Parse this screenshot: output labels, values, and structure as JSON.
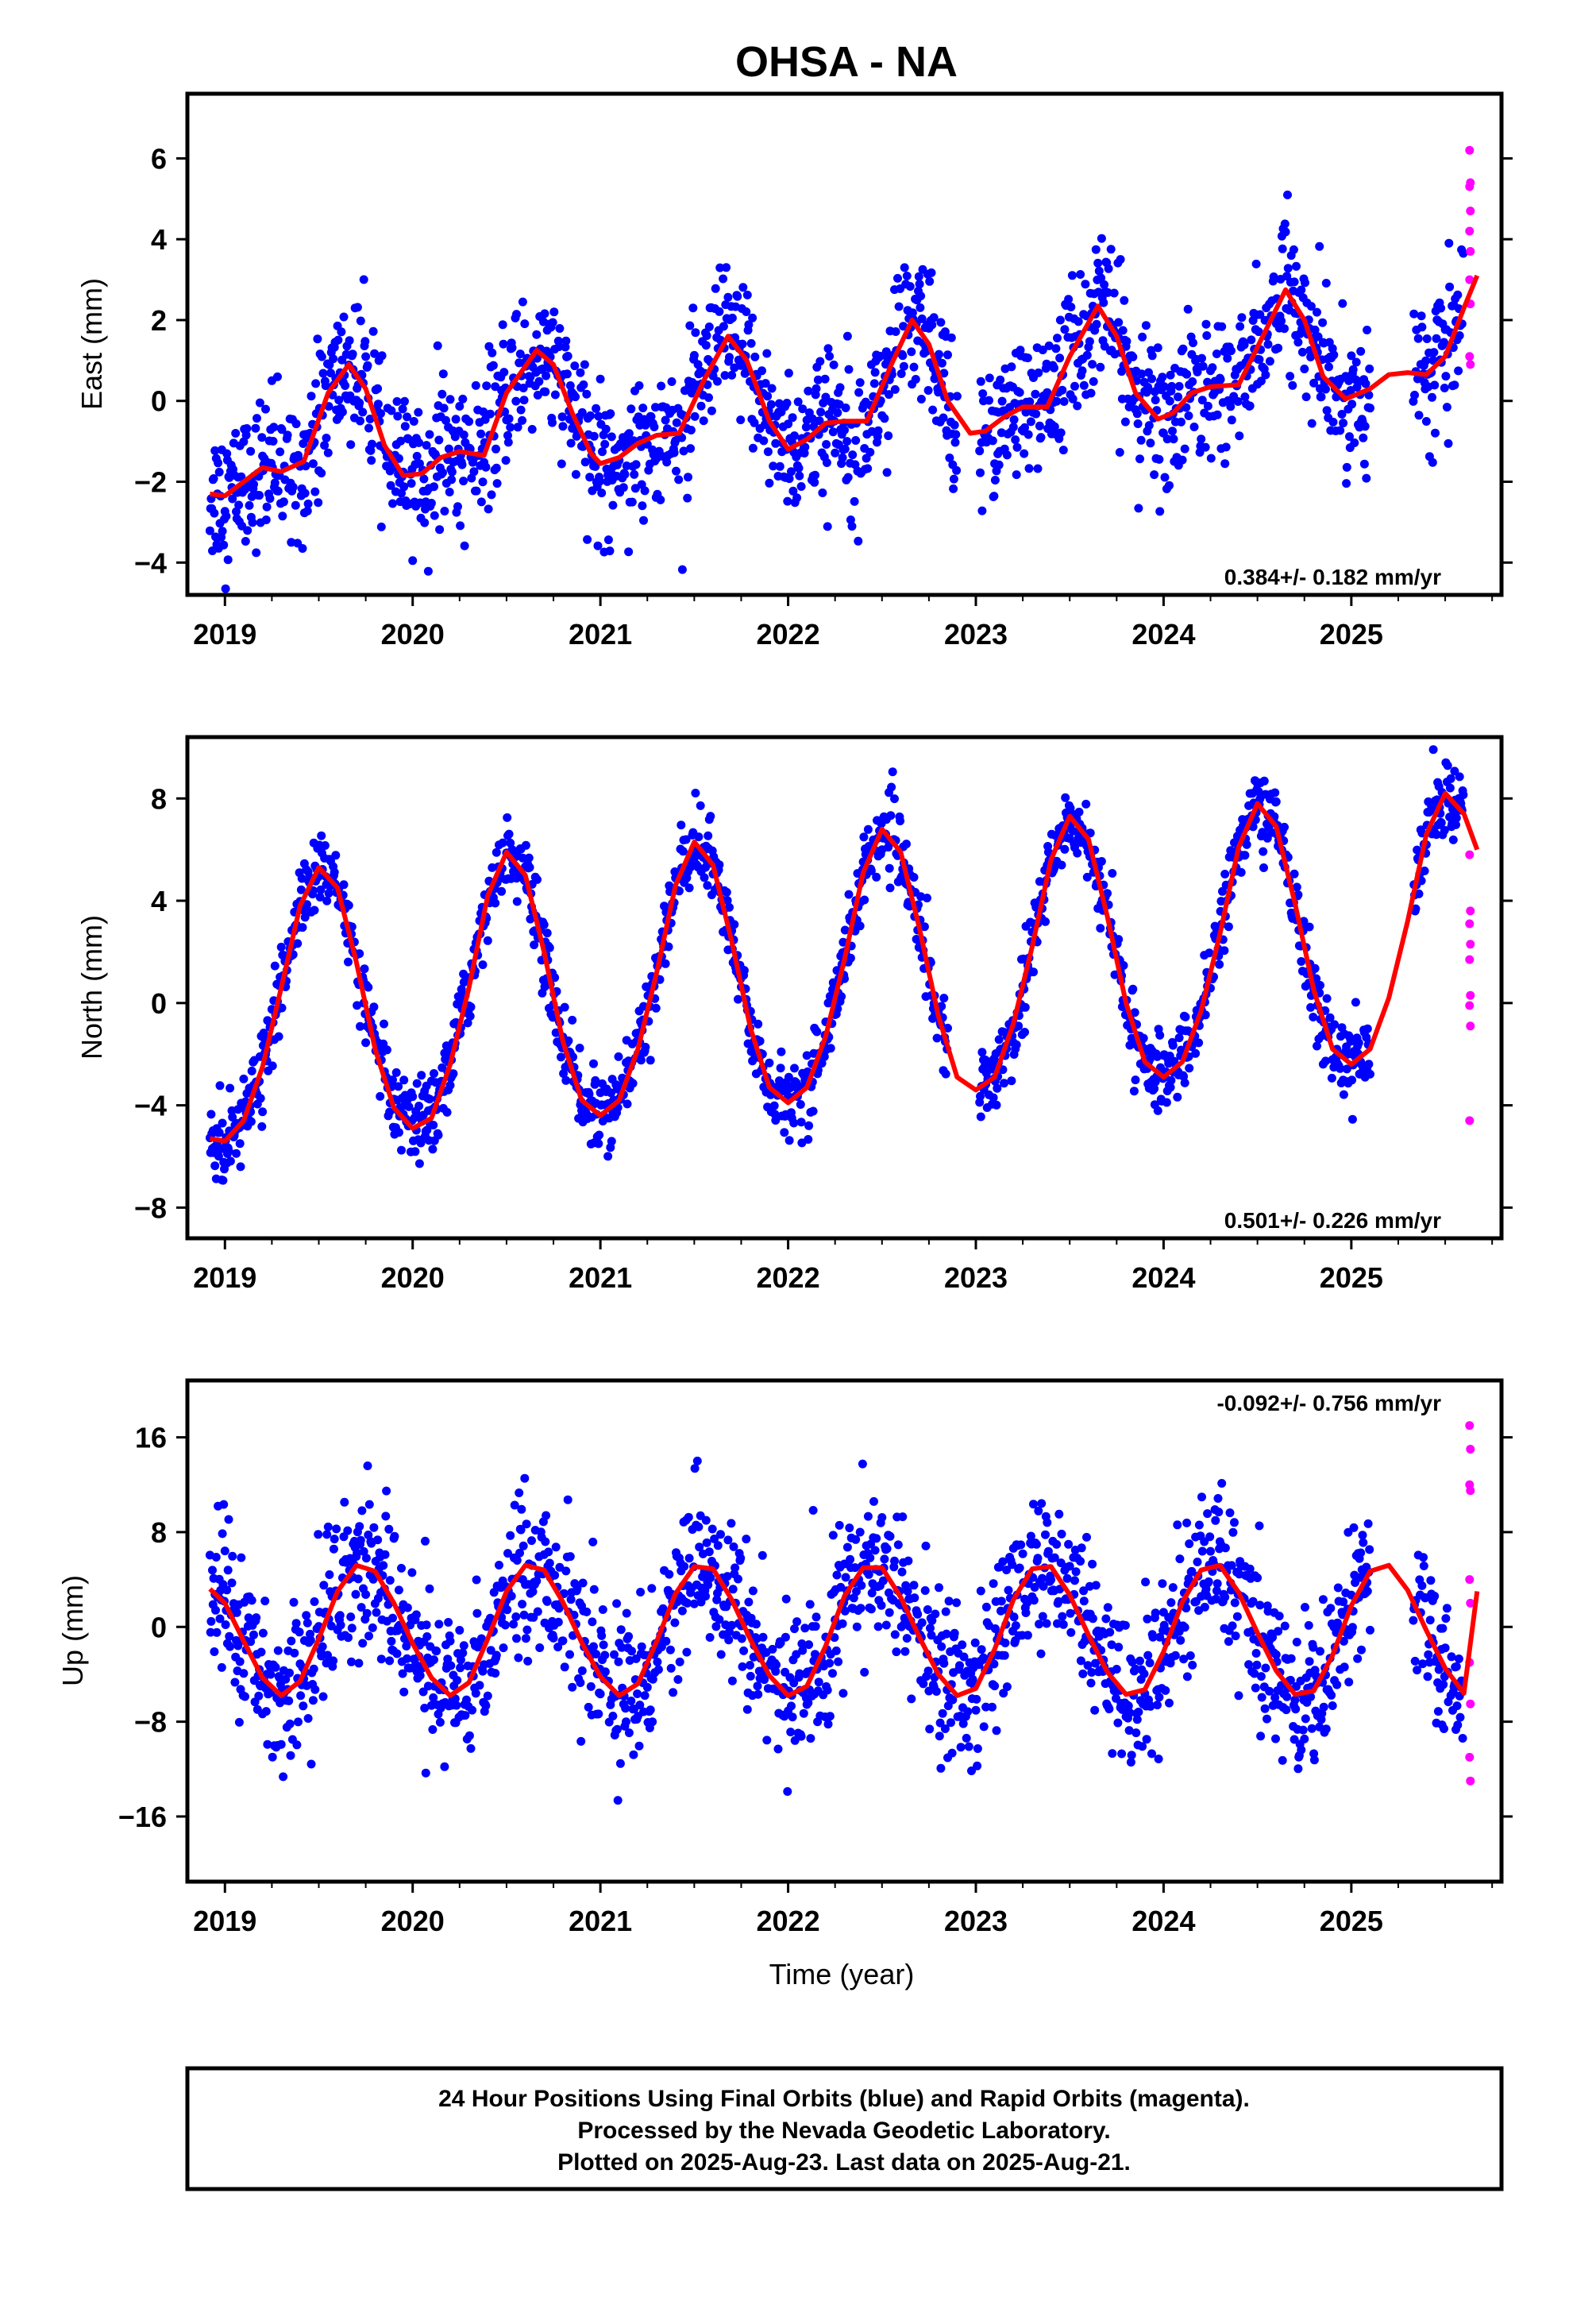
{
  "title": "OHSA - NA",
  "xlabel": "Time (year)",
  "colors": {
    "final": "#0000ff",
    "rapid": "#ff00ff",
    "model": "#ff0000",
    "frame": "#000000"
  },
  "footer": [
    "24 Hour Positions Using Final Orbits (blue) and Rapid Orbits (magenta).",
    "Processed by the Nevada Geodetic Laboratory.",
    "Plotted on 2025-Aug-23. Last data on 2025-Aug-21."
  ],
  "chart_data": [
    {
      "type": "scatter",
      "name": "east",
      "ylabel": "East (mm)",
      "xlim": [
        2018.8,
        2025.8
      ],
      "ylim": [
        -4.8,
        7.6
      ],
      "yticks": [
        -4,
        -2,
        0,
        2,
        4,
        6
      ],
      "xticks": [
        2019,
        2020,
        2021,
        2022,
        2023,
        2024,
        2025
      ],
      "rate_label": "0.384+/- 0.182 mm/yr",
      "rate_position": "bottom-right",
      "model": [
        [
          2018.92,
          -2.3
        ],
        [
          2019.0,
          -2.35
        ],
        [
          2019.1,
          -2.0
        ],
        [
          2019.2,
          -1.65
        ],
        [
          2019.3,
          -1.75
        ],
        [
          2019.42,
          -1.5
        ],
        [
          2019.55,
          0.2
        ],
        [
          2019.66,
          0.9
        ],
        [
          2019.75,
          0.3
        ],
        [
          2019.85,
          -1.1
        ],
        [
          2019.95,
          -1.85
        ],
        [
          2020.05,
          -1.8
        ],
        [
          2020.15,
          -1.4
        ],
        [
          2020.25,
          -1.25
        ],
        [
          2020.38,
          -1.35
        ],
        [
          2020.5,
          0.2
        ],
        [
          2020.66,
          1.25
        ],
        [
          2020.75,
          0.9
        ],
        [
          2020.85,
          -0.3
        ],
        [
          2020.95,
          -1.3
        ],
        [
          2021.0,
          -1.55
        ],
        [
          2021.1,
          -1.4
        ],
        [
          2021.2,
          -1.05
        ],
        [
          2021.3,
          -0.85
        ],
        [
          2021.42,
          -0.8
        ],
        [
          2021.55,
          0.5
        ],
        [
          2021.68,
          1.6
        ],
        [
          2021.78,
          1.0
        ],
        [
          2021.9,
          -0.5
        ],
        [
          2022.0,
          -1.2
        ],
        [
          2022.1,
          -0.95
        ],
        [
          2022.2,
          -0.55
        ],
        [
          2022.3,
          -0.5
        ],
        [
          2022.42,
          -0.5
        ],
        [
          2022.55,
          0.9
        ],
        [
          2022.66,
          2.0
        ],
        [
          2022.75,
          1.4
        ],
        [
          2022.85,
          0.0
        ],
        [
          2022.97,
          -0.8
        ],
        [
          2023.05,
          -0.75
        ],
        [
          2023.15,
          -0.4
        ],
        [
          2023.25,
          -0.15
        ],
        [
          2023.38,
          -0.15
        ],
        [
          2023.5,
          1.1
        ],
        [
          2023.65,
          2.35
        ],
        [
          2023.75,
          1.6
        ],
        [
          2023.85,
          0.2
        ],
        [
          2023.97,
          -0.45
        ],
        [
          2024.05,
          -0.3
        ],
        [
          2024.15,
          0.2
        ],
        [
          2024.25,
          0.35
        ],
        [
          2024.4,
          0.4
        ],
        [
          2024.55,
          1.8
        ],
        [
          2024.65,
          2.75
        ],
        [
          2024.75,
          2.0
        ],
        [
          2024.85,
          0.6
        ],
        [
          2024.97,
          0.05
        ],
        [
          2025.1,
          0.3
        ],
        [
          2025.2,
          0.65
        ],
        [
          2025.3,
          0.7
        ],
        [
          2025.4,
          0.65
        ],
        [
          2025.5,
          1.1
        ],
        [
          2025.6,
          2.3
        ],
        [
          2025.67,
          3.1
        ]
      ],
      "final": {
        "start": 2018.92,
        "end": 2025.6,
        "gaps": [
          [
            2022.9,
            2023.02
          ],
          [
            2025.1,
            2025.33
          ]
        ],
        "scatter": 1.1,
        "offset": 0.0
      },
      "rapid": {
        "start": 2025.61,
        "end": 2025.65,
        "values": [
          6.2,
          5.4,
          5.3,
          4.7,
          4.2,
          3.7,
          3.0,
          2.4,
          1.1,
          0.9
        ]
      }
    },
    {
      "type": "scatter",
      "name": "north",
      "ylabel": "North (mm)",
      "xlim": [
        2018.8,
        2025.8
      ],
      "ylim": [
        -9.2,
        10.4
      ],
      "yticks": [
        -8,
        -4,
        0,
        4,
        8
      ],
      "xticks": [
        2019,
        2020,
        2021,
        2022,
        2023,
        2024,
        2025
      ],
      "rate_label": "0.501+/- 0.226 mm/yr",
      "rate_position": "bottom-right",
      "model": [
        [
          2018.92,
          -5.3
        ],
        [
          2019.0,
          -5.4
        ],
        [
          2019.1,
          -4.6
        ],
        [
          2019.2,
          -2.5
        ],
        [
          2019.3,
          0.6
        ],
        [
          2019.4,
          3.8
        ],
        [
          2019.5,
          5.3
        ],
        [
          2019.6,
          4.5
        ],
        [
          2019.7,
          1.6
        ],
        [
          2019.8,
          -1.8
        ],
        [
          2019.9,
          -4.1
        ],
        [
          2020.0,
          -4.9
        ],
        [
          2020.1,
          -4.5
        ],
        [
          2020.2,
          -2.4
        ],
        [
          2020.3,
          0.6
        ],
        [
          2020.4,
          4.2
        ],
        [
          2020.5,
          5.9
        ],
        [
          2020.6,
          5.0
        ],
        [
          2020.7,
          2.0
        ],
        [
          2020.8,
          -1.5
        ],
        [
          2020.9,
          -3.8
        ],
        [
          2021.0,
          -4.4
        ],
        [
          2021.1,
          -3.8
        ],
        [
          2021.2,
          -1.8
        ],
        [
          2021.3,
          1.2
        ],
        [
          2021.4,
          4.6
        ],
        [
          2021.5,
          6.3
        ],
        [
          2021.6,
          5.4
        ],
        [
          2021.7,
          2.4
        ],
        [
          2021.8,
          -1.0
        ],
        [
          2021.9,
          -3.3
        ],
        [
          2022.0,
          -3.9
        ],
        [
          2022.1,
          -3.3
        ],
        [
          2022.2,
          -1.3
        ],
        [
          2022.3,
          1.7
        ],
        [
          2022.4,
          5.1
        ],
        [
          2022.5,
          6.8
        ],
        [
          2022.6,
          5.9
        ],
        [
          2022.7,
          2.9
        ],
        [
          2022.8,
          -0.5
        ],
        [
          2022.9,
          -2.9
        ],
        [
          2023.0,
          -3.4
        ],
        [
          2023.1,
          -2.9
        ],
        [
          2023.2,
          -0.8
        ],
        [
          2023.3,
          2.2
        ],
        [
          2023.4,
          5.6
        ],
        [
          2023.5,
          7.3
        ],
        [
          2023.6,
          6.4
        ],
        [
          2023.7,
          3.4
        ],
        [
          2023.8,
          0.0
        ],
        [
          2023.9,
          -2.3
        ],
        [
          2024.0,
          -2.9
        ],
        [
          2024.1,
          -2.3
        ],
        [
          2024.2,
          -0.3
        ],
        [
          2024.3,
          2.7
        ],
        [
          2024.4,
          6.1
        ],
        [
          2024.5,
          7.8
        ],
        [
          2024.6,
          6.9
        ],
        [
          2024.7,
          3.9
        ],
        [
          2024.8,
          0.5
        ],
        [
          2024.9,
          -1.8
        ],
        [
          2025.0,
          -2.4
        ],
        [
          2025.1,
          -1.8
        ],
        [
          2025.2,
          0.2
        ],
        [
          2025.3,
          3.2
        ],
        [
          2025.4,
          6.6
        ],
        [
          2025.5,
          8.2
        ],
        [
          2025.6,
          7.4
        ],
        [
          2025.67,
          6.0
        ]
      ],
      "final": {
        "start": 2018.92,
        "end": 2025.6,
        "gaps": [
          [
            2022.85,
            2023.02
          ],
          [
            2025.1,
            2025.33
          ]
        ],
        "scatter": 0.9,
        "offset": 0.0
      },
      "rapid": {
        "start": 2025.61,
        "end": 2025.65,
        "values": [
          5.8,
          3.6,
          3.1,
          2.3,
          1.7,
          0.3,
          -0.1,
          -0.9,
          -4.6
        ]
      }
    },
    {
      "type": "scatter",
      "name": "up",
      "ylabel": "Up (mm)",
      "xlim": [
        2018.8,
        2025.8
      ],
      "ylim": [
        -21.5,
        20.8
      ],
      "yticks": [
        -16,
        -8,
        0,
        8,
        16
      ],
      "xticks": [
        2019,
        2020,
        2021,
        2022,
        2023,
        2024,
        2025
      ],
      "rate_label": "-0.092+/- 0.756 mm/yr",
      "rate_position": "top-right",
      "model": [
        [
          2018.92,
          3.2
        ],
        [
          2019.0,
          2.0
        ],
        [
          2019.1,
          -1.2
        ],
        [
          2019.2,
          -4.3
        ],
        [
          2019.3,
          -5.8
        ],
        [
          2019.4,
          -4.6
        ],
        [
          2019.5,
          -1.0
        ],
        [
          2019.6,
          3.0
        ],
        [
          2019.7,
          5.2
        ],
        [
          2019.8,
          4.7
        ],
        [
          2019.9,
          2.0
        ],
        [
          2020.0,
          -1.4
        ],
        [
          2020.1,
          -4.3
        ],
        [
          2020.2,
          -5.8
        ],
        [
          2020.3,
          -4.7
        ],
        [
          2020.4,
          -1.0
        ],
        [
          2020.5,
          3.0
        ],
        [
          2020.6,
          5.2
        ],
        [
          2020.7,
          4.8
        ],
        [
          2020.8,
          2.1
        ],
        [
          2020.9,
          -1.3
        ],
        [
          2021.0,
          -4.2
        ],
        [
          2021.1,
          -5.8
        ],
        [
          2021.2,
          -4.8
        ],
        [
          2021.3,
          -1.2
        ],
        [
          2021.4,
          2.8
        ],
        [
          2021.5,
          5.1
        ],
        [
          2021.6,
          4.9
        ],
        [
          2021.7,
          2.3
        ],
        [
          2021.8,
          -1.1
        ],
        [
          2021.9,
          -4.1
        ],
        [
          2022.0,
          -5.8
        ],
        [
          2022.1,
          -5.0
        ],
        [
          2022.2,
          -1.6
        ],
        [
          2022.3,
          2.6
        ],
        [
          2022.4,
          5.0
        ],
        [
          2022.5,
          5.0
        ],
        [
          2022.6,
          2.5
        ],
        [
          2022.7,
          -0.9
        ],
        [
          2022.8,
          -4.0
        ],
        [
          2022.9,
          -5.8
        ],
        [
          2023.0,
          -5.2
        ],
        [
          2023.1,
          -1.9
        ],
        [
          2023.2,
          2.3
        ],
        [
          2023.3,
          4.9
        ],
        [
          2023.4,
          5.1
        ],
        [
          2023.5,
          2.7
        ],
        [
          2023.6,
          -0.7
        ],
        [
          2023.7,
          -3.8
        ],
        [
          2023.8,
          -5.7
        ],
        [
          2023.9,
          -5.3
        ],
        [
          2024.0,
          -2.1
        ],
        [
          2024.1,
          2.1
        ],
        [
          2024.2,
          4.8
        ],
        [
          2024.3,
          5.2
        ],
        [
          2024.4,
          2.9
        ],
        [
          2024.5,
          -0.5
        ],
        [
          2024.6,
          -3.7
        ],
        [
          2024.7,
          -5.7
        ],
        [
          2024.8,
          -5.4
        ],
        [
          2024.9,
          -2.4
        ],
        [
          2025.0,
          1.8
        ],
        [
          2025.1,
          4.7
        ],
        [
          2025.2,
          5.2
        ],
        [
          2025.3,
          3.1
        ],
        [
          2025.4,
          -0.3
        ],
        [
          2025.5,
          -3.5
        ],
        [
          2025.6,
          -5.6
        ],
        [
          2025.67,
          3.0
        ]
      ],
      "final": {
        "start": 2018.92,
        "end": 2025.6,
        "gaps": [
          [
            2025.1,
            2025.33
          ]
        ],
        "scatter": 4.0,
        "offset": 0.0
      },
      "rapid": {
        "start": 2025.61,
        "end": 2025.65,
        "values": [
          17.0,
          15.0,
          12.0,
          11.5,
          4.0,
          2.0,
          -3.0,
          -6.5,
          -11.0,
          -13.0
        ]
      }
    }
  ]
}
